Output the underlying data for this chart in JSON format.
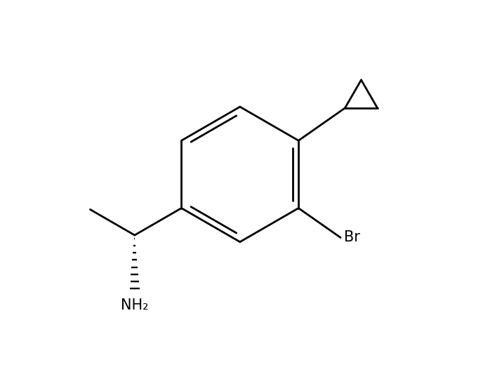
{
  "background_color": "#ffffff",
  "line_color": "#000000",
  "line_width": 2.0,
  "figure_size": [
    6.88,
    5.3
  ],
  "dpi": 100,
  "xlim": [
    0,
    6.88
  ],
  "ylim": [
    0,
    5.3
  ]
}
